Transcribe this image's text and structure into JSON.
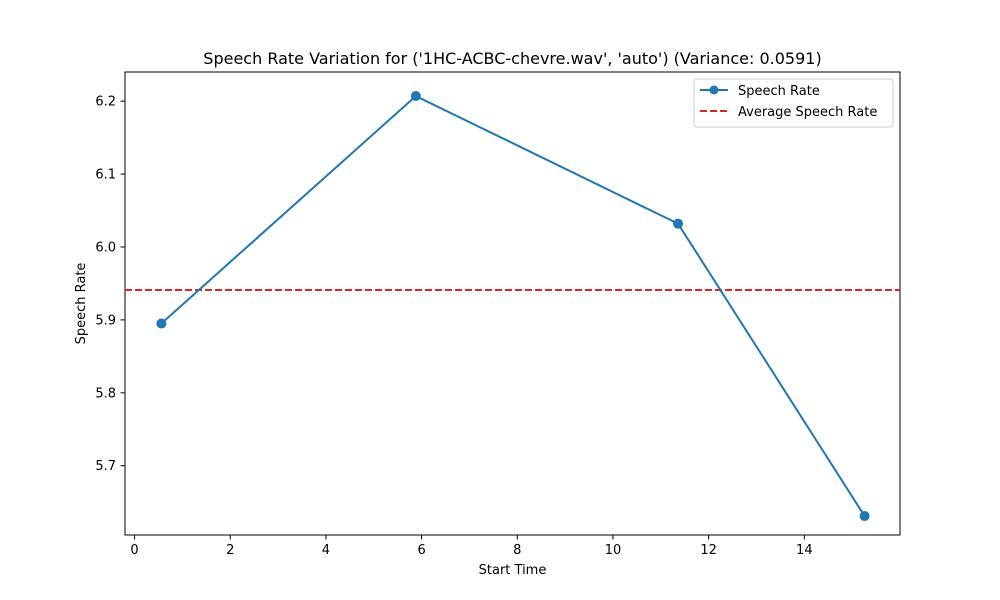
{
  "chart_data": {
    "type": "line",
    "title": "Speech Rate Variation for ('1HC-ACBC-chevre.wav', 'auto') (Variance: 0.0591)",
    "xlabel": "Start Time",
    "ylabel": "Speech Rate",
    "xlim": [
      -0.2,
      16.0
    ],
    "ylim": [
      5.605,
      6.24
    ],
    "x_ticks": [
      0,
      2,
      4,
      6,
      8,
      10,
      12,
      14
    ],
    "y_ticks": [
      5.7,
      5.8,
      5.9,
      6.0,
      6.1,
      6.2
    ],
    "x_tick_labels": [
      "0",
      "2",
      "4",
      "6",
      "8",
      "10",
      "12",
      "14"
    ],
    "y_tick_labels": [
      "5.7",
      "5.8",
      "5.9",
      "6.0",
      "6.1",
      "6.2"
    ],
    "series": [
      {
        "name": "Speech Rate",
        "x": [
          0.56,
          5.88,
          11.36,
          15.26
        ],
        "y": [
          5.895,
          6.207,
          6.032,
          5.631
        ],
        "color": "#1f77b4",
        "marker": "circle"
      }
    ],
    "hlines": [
      {
        "name": "Average Speech Rate",
        "y": 5.941,
        "color": "#d62728",
        "style": "dashed"
      }
    ],
    "legend": {
      "position": "top-right",
      "entries": [
        "Speech Rate",
        "Average Speech Rate"
      ]
    },
    "grid": false
  }
}
